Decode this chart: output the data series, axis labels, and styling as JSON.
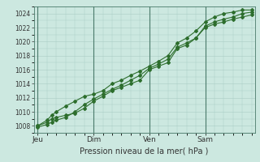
{
  "background_color": "#cce8e0",
  "plot_bg_color": "#cce8e0",
  "grid_color": "#aaccC4",
  "line_color": "#2d6e2d",
  "marker_color": "#2d6e2d",
  "xlabel": "Pression niveau de la mer( hPa )",
  "ylim": [
    1007,
    1025
  ],
  "yticks": [
    1008,
    1010,
    1012,
    1014,
    1016,
    1018,
    1020,
    1022,
    1024
  ],
  "day_labels": [
    "Jeu",
    "Dim",
    "Ven",
    "Sam"
  ],
  "day_positions": [
    0,
    72,
    144,
    216
  ],
  "xlim": [
    -5,
    280
  ],
  "line1_x": [
    0,
    12,
    18,
    24,
    36,
    48,
    60,
    72,
    84,
    96,
    108,
    120,
    132,
    144,
    156,
    168,
    180,
    192,
    204,
    216,
    228,
    240,
    252,
    264,
    276
  ],
  "line1_y": [
    1008,
    1008.5,
    1009.0,
    1009.2,
    1009.5,
    1009.8,
    1010.5,
    1011.5,
    1012.2,
    1013.0,
    1013.5,
    1014.0,
    1014.5,
    1016.0,
    1016.5,
    1017.0,
    1019.0,
    1019.5,
    1020.5,
    1022.2,
    1022.8,
    1023.2,
    1023.5,
    1024.0,
    1024.2
  ],
  "line2_x": [
    0,
    12,
    18,
    24,
    36,
    48,
    60,
    72,
    84,
    96,
    108,
    120,
    132,
    144,
    156,
    168,
    180,
    192,
    204,
    216,
    228,
    240,
    252,
    264,
    276
  ],
  "line2_y": [
    1007.8,
    1008.2,
    1008.5,
    1008.8,
    1009.2,
    1010.0,
    1011.0,
    1011.8,
    1012.5,
    1013.2,
    1013.8,
    1014.5,
    1015.2,
    1016.2,
    1016.8,
    1017.5,
    1019.2,
    1019.8,
    1020.5,
    1022.0,
    1022.5,
    1022.8,
    1023.2,
    1023.5,
    1023.8
  ],
  "line3_x": [
    0,
    12,
    18,
    24,
    36,
    48,
    60,
    72,
    84,
    96,
    108,
    120,
    132,
    144,
    156,
    168,
    180,
    192,
    204,
    216,
    228,
    240,
    252,
    264,
    276
  ],
  "line3_y": [
    1008.0,
    1008.8,
    1009.5,
    1010.0,
    1010.8,
    1011.5,
    1012.2,
    1012.5,
    1013.0,
    1014.0,
    1014.5,
    1015.2,
    1015.8,
    1016.5,
    1017.2,
    1018.0,
    1019.8,
    1020.5,
    1021.5,
    1022.8,
    1023.5,
    1024.0,
    1024.2,
    1024.5,
    1024.5
  ]
}
